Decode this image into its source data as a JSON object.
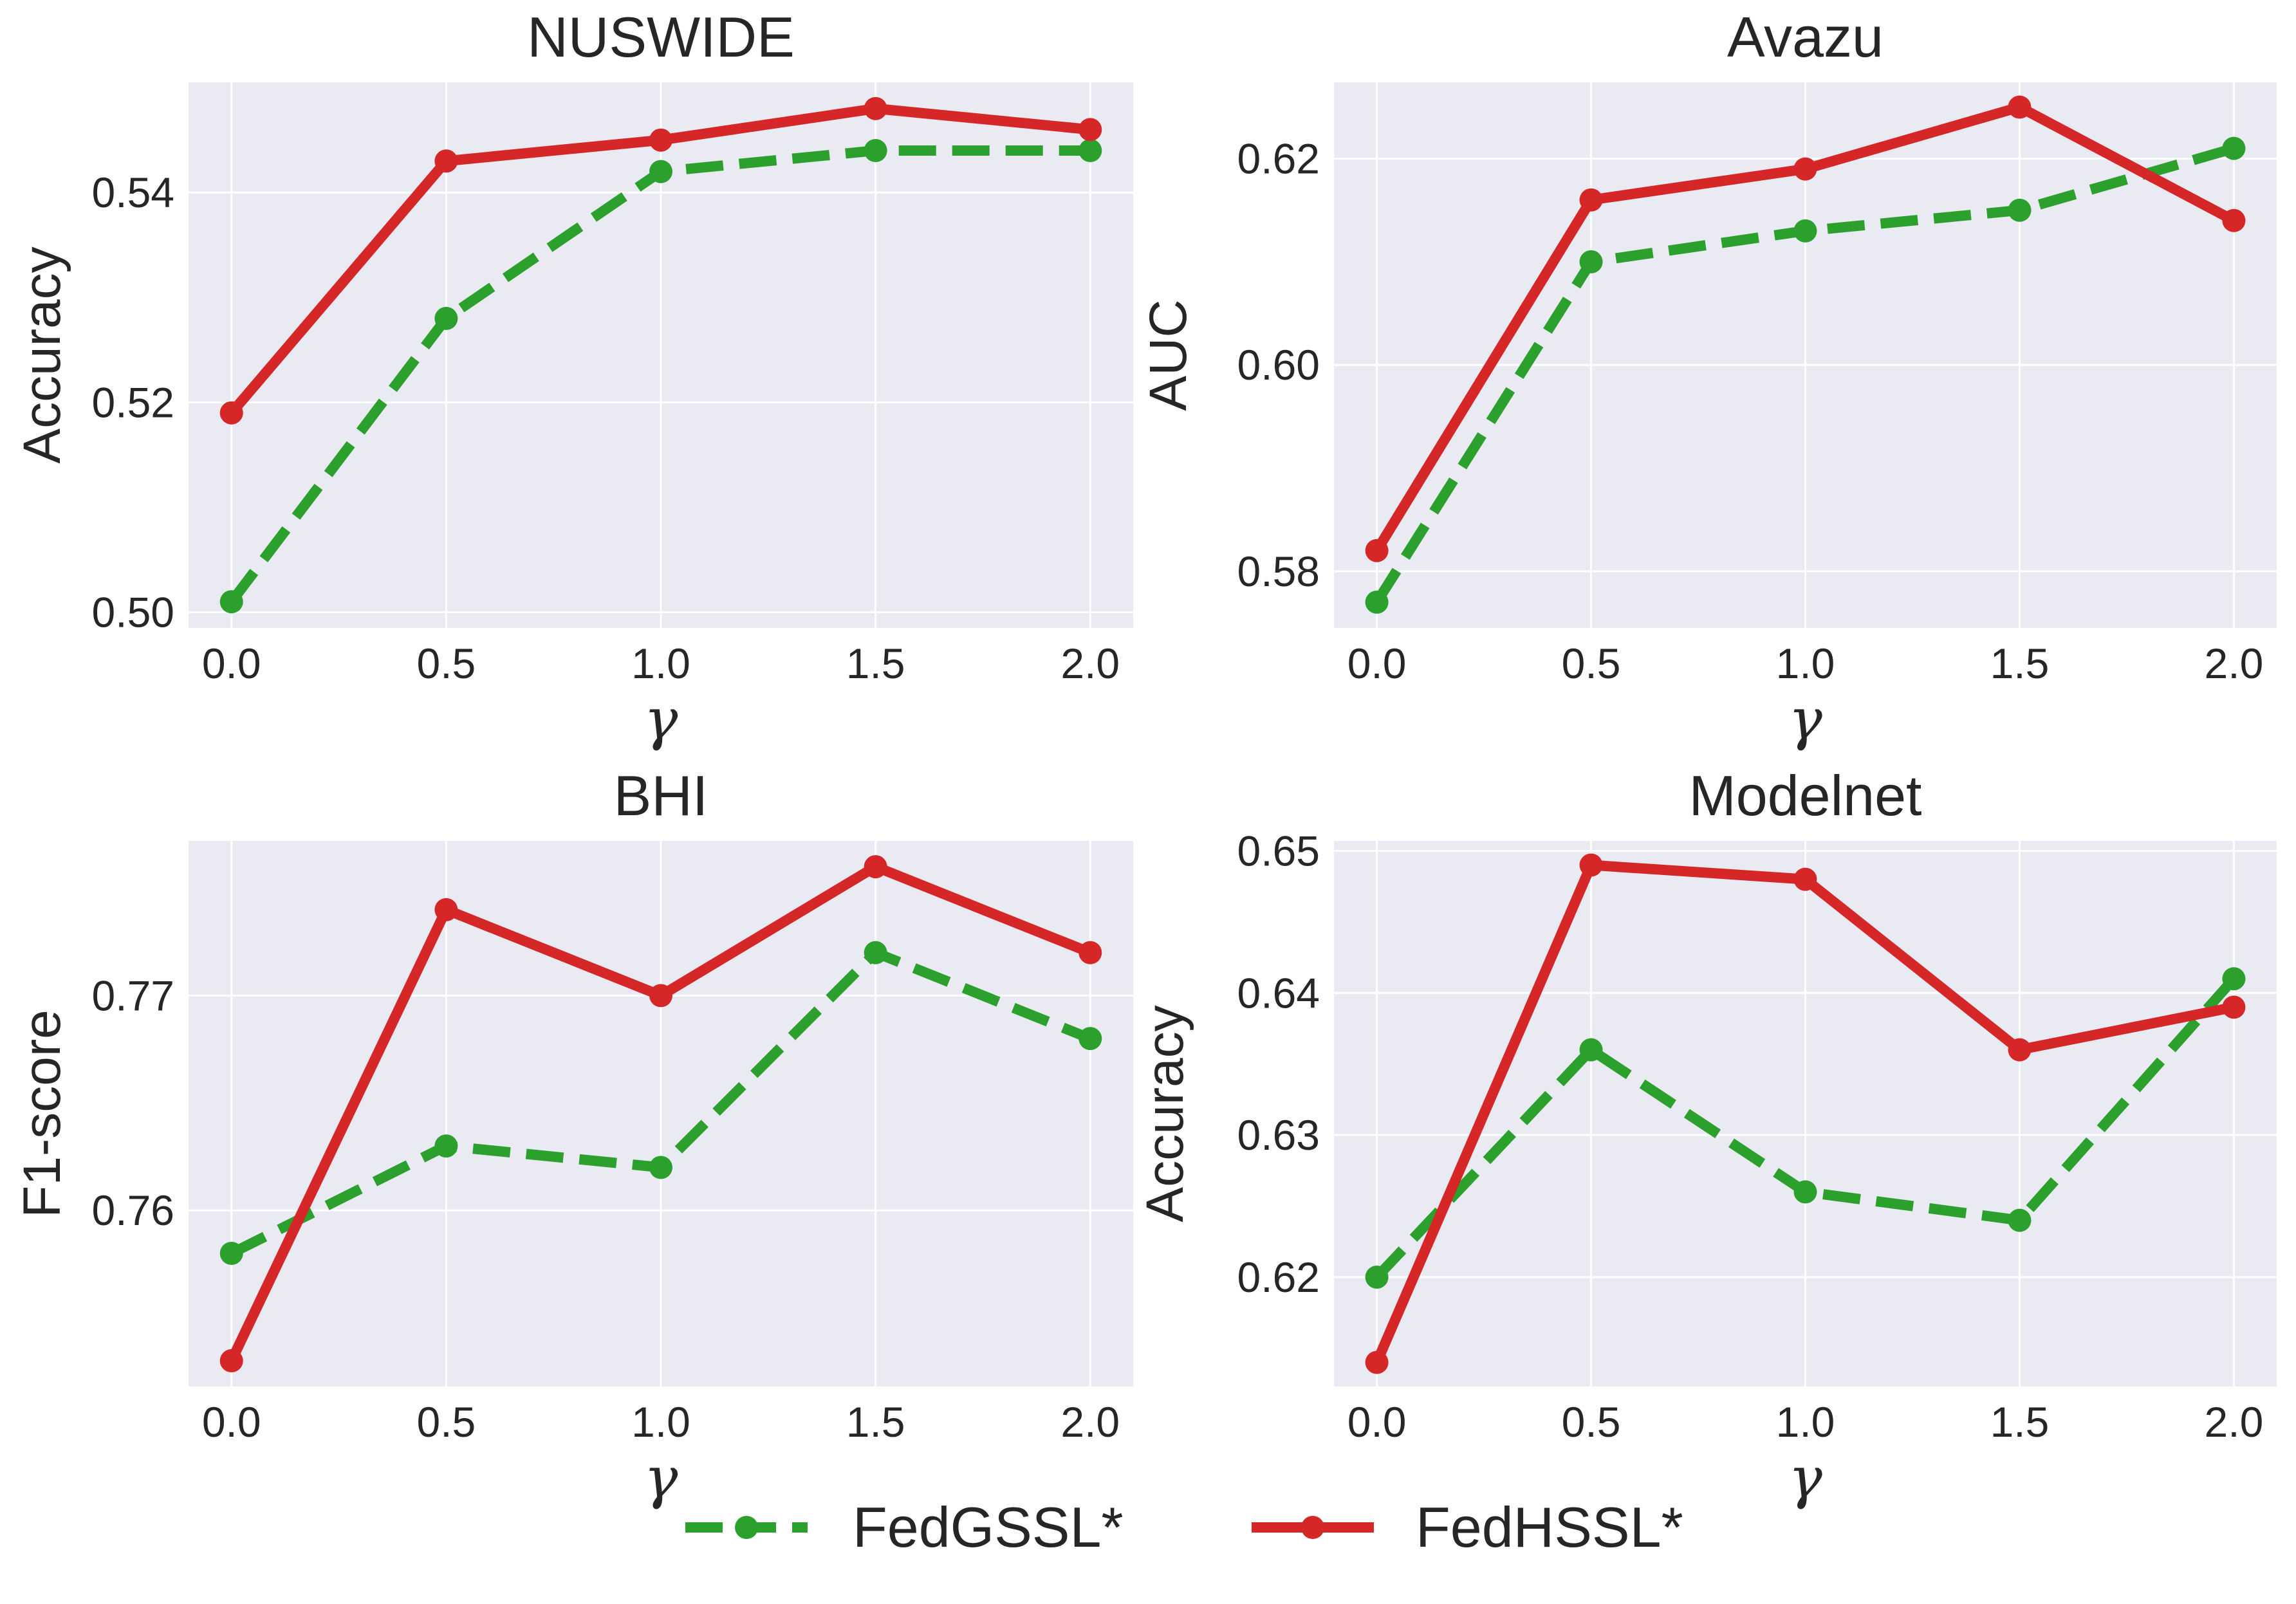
{
  "colors": {
    "FedGSSL*": "#2ca02c",
    "FedHSSL*": "#d62728",
    "plot_background": "#eaeaf2",
    "grid": "#ffffff"
  },
  "legend": {
    "placement": "bottom-center",
    "entries": [
      {
        "label": "FedGSSL*",
        "linestyle": "dashed",
        "color": "#2ca02c"
      },
      {
        "label": "FedHSSL*",
        "linestyle": "solid",
        "color": "#d62728"
      }
    ]
  },
  "chart_data": [
    {
      "type": "line",
      "title": "NUSWIDE",
      "xlabel": "γ",
      "ylabel": "Accuracy",
      "x": [
        0.0,
        0.5,
        1.0,
        1.5,
        2.0
      ],
      "x_tick_labels": [
        "0.0",
        "0.5",
        "1.0",
        "1.5",
        "2.0"
      ],
      "xlim": [
        -0.1,
        2.1
      ],
      "ylim": [
        0.4985,
        0.5505
      ],
      "y_ticks": [
        0.5,
        0.52,
        0.54
      ],
      "y_tick_labels": [
        "0.50",
        "0.52",
        "0.54"
      ],
      "grid": true,
      "series": [
        {
          "name": "FedGSSL*",
          "linestyle": "dashed",
          "values": [
            0.501,
            0.528,
            0.542,
            0.544,
            0.544
          ]
        },
        {
          "name": "FedHSSL*",
          "linestyle": "solid",
          "values": [
            0.519,
            0.543,
            0.545,
            0.548,
            0.546
          ]
        }
      ]
    },
    {
      "type": "line",
      "title": "Avazu",
      "xlabel": "γ",
      "ylabel": "AUC",
      "x": [
        0.0,
        0.5,
        1.0,
        1.5,
        2.0
      ],
      "x_tick_labels": [
        "0.0",
        "0.5",
        "1.0",
        "1.5",
        "2.0"
      ],
      "xlim": [
        -0.1,
        2.1
      ],
      "ylim": [
        0.5745,
        0.6274
      ],
      "y_ticks": [
        0.58,
        0.6,
        0.62
      ],
      "y_tick_labels": [
        "0.58",
        "0.60",
        "0.62"
      ],
      "grid": true,
      "series": [
        {
          "name": "FedGSSL*",
          "linestyle": "dashed",
          "values": [
            0.577,
            0.61,
            0.613,
            0.615,
            0.621
          ]
        },
        {
          "name": "FedHSSL*",
          "linestyle": "solid",
          "values": [
            0.582,
            0.616,
            0.619,
            0.625,
            0.614
          ]
        }
      ]
    },
    {
      "type": "line",
      "title": "BHI",
      "xlabel": "γ",
      "ylabel": "F1-score",
      "x": [
        0.0,
        0.5,
        1.0,
        1.5,
        2.0
      ],
      "x_tick_labels": [
        "0.0",
        "0.5",
        "1.0",
        "1.5",
        "2.0"
      ],
      "xlim": [
        -0.1,
        2.1
      ],
      "ylim": [
        0.7518,
        0.7772
      ],
      "y_ticks": [
        0.76,
        0.77
      ],
      "y_tick_labels": [
        "0.76",
        "0.77"
      ],
      "grid": true,
      "series": [
        {
          "name": "FedGSSL*",
          "linestyle": "dashed",
          "values": [
            0.758,
            0.763,
            0.762,
            0.772,
            0.768
          ]
        },
        {
          "name": "FedHSSL*",
          "linestyle": "solid",
          "values": [
            0.753,
            0.774,
            0.77,
            0.776,
            0.772
          ]
        }
      ]
    },
    {
      "type": "line",
      "title": "Modelnet",
      "xlabel": "γ",
      "ylabel": "Accuracy",
      "x": [
        0.0,
        0.5,
        1.0,
        1.5,
        2.0
      ],
      "x_tick_labels": [
        "0.0",
        "0.5",
        "1.0",
        "1.5",
        "2.0"
      ],
      "xlim": [
        -0.1,
        2.1
      ],
      "ylim": [
        0.6123,
        0.6507
      ],
      "y_ticks": [
        0.62,
        0.63,
        0.64,
        0.65
      ],
      "y_tick_labels": [
        "0.62",
        "0.63",
        "0.64",
        "0.65"
      ],
      "grid": true,
      "series": [
        {
          "name": "FedGSSL*",
          "linestyle": "dashed",
          "values": [
            0.62,
            0.636,
            0.626,
            0.624,
            0.641
          ]
        },
        {
          "name": "FedHSSL*",
          "linestyle": "solid",
          "values": [
            0.614,
            0.649,
            0.648,
            0.636,
            0.639
          ]
        }
      ]
    }
  ]
}
